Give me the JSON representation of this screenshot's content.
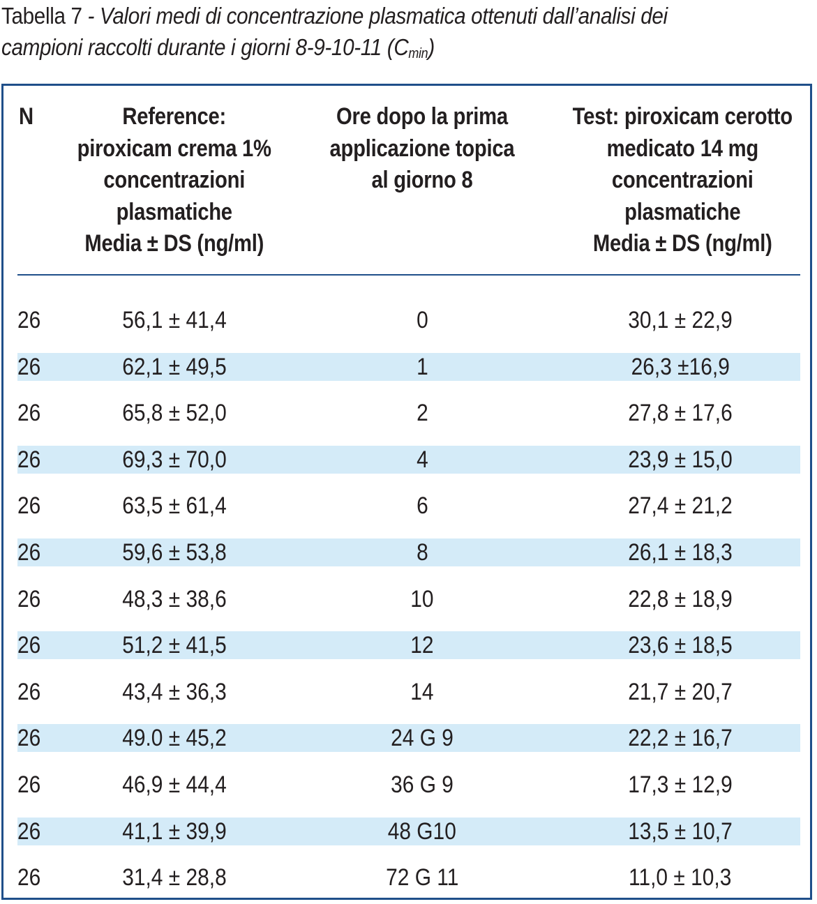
{
  "caption": {
    "label": "Tabella 7",
    "separator": " - ",
    "desc_line1": "Valori medi di concentrazione plasmatica ottenuti dall’analisi dei",
    "desc_line2_pre": "campioni raccolti durante i giorni 8-9-10-11 (C",
    "desc_sub": "min",
    "desc_line2_post": ")"
  },
  "table": {
    "headers": {
      "n": [
        "N"
      ],
      "reference": [
        "Reference:",
        "piroxicam crema 1%",
        "concentrazioni",
        "plasmatiche",
        "Media ± DS (ng/ml)"
      ],
      "ore": [
        "Ore dopo la prima",
        "applicazione topica",
        "al giorno 8"
      ],
      "test": [
        "Test: piroxicam cerotto",
        "medicato 14 mg",
        "concentrazioni",
        "plasmatiche",
        "Media ± DS (ng/ml)"
      ]
    },
    "rows": [
      {
        "n": "26",
        "ref": "56,1 ± 41,4",
        "ore": "0",
        "test": "30,1 ± 22,9"
      },
      {
        "n": "26",
        "ref": "62,1 ± 49,5",
        "ore": "1",
        "test": "26,3 ±16,9"
      },
      {
        "n": "26",
        "ref": "65,8 ± 52,0",
        "ore": "2",
        "test": "27,8 ± 17,6"
      },
      {
        "n": "26",
        "ref": "69,3 ± 70,0",
        "ore": "4",
        "test": "23,9 ± 15,0"
      },
      {
        "n": "26",
        "ref": "63,5 ± 61,4",
        "ore": "6",
        "test": "27,4 ± 21,2"
      },
      {
        "n": "26",
        "ref": "59,6 ± 53,8",
        "ore": "8",
        "test": "26,1 ± 18,3"
      },
      {
        "n": "26",
        "ref": "48,3 ± 38,6",
        "ore": "10",
        "test": "22,8 ± 18,9"
      },
      {
        "n": "26",
        "ref": "51,2 ± 41,5",
        "ore": "12",
        "test": "23,6 ± 18,5"
      },
      {
        "n": "26",
        "ref": "43,4 ± 36,3",
        "ore": "14",
        "test": "21,7 ± 20,7"
      },
      {
        "n": "26",
        "ref": "49.0 ± 45,2",
        "ore": "24 G 9",
        "test": "22,2 ± 16,7"
      },
      {
        "n": "26",
        "ref": "46,9 ± 44,4",
        "ore": "36 G 9",
        "test": "17,3 ± 12,9"
      },
      {
        "n": "26",
        "ref": "41,1 ± 39,9",
        "ore": "48 G10",
        "test": "13,5 ± 10,7"
      },
      {
        "n": "26",
        "ref": "31,4 ± 28,8",
        "ore": "72 G 11",
        "test": "11,0 ± 10,3"
      }
    ]
  },
  "colors": {
    "border": "#1f4f8a",
    "row_shade": "#d4ebf8",
    "text": "#231f20"
  }
}
